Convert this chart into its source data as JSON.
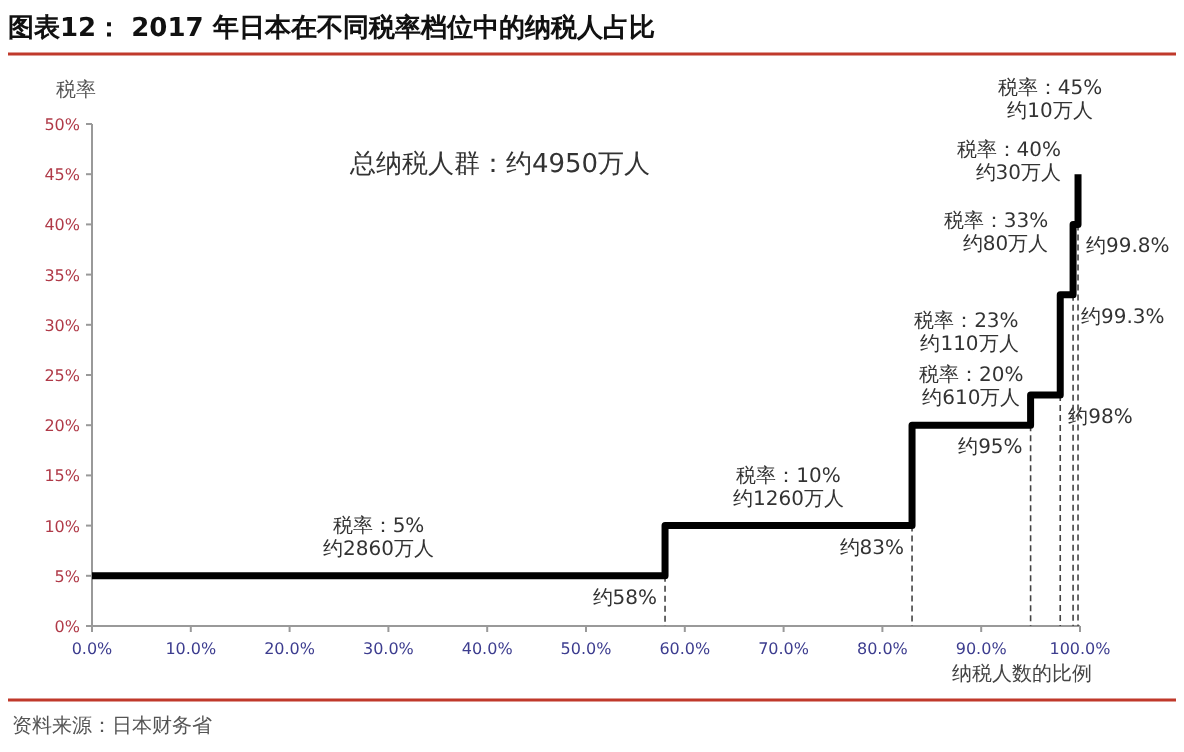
{
  "chart_data": {
    "type": "step",
    "title": "图表12：  2017 年日本在不同税率档位中的纳税人占比",
    "xlabel": "纳税人数的比例",
    "ylabel": "税率",
    "x": [
      0,
      58,
      83,
      95,
      98,
      99.3,
      99.8
    ],
    "series": [
      {
        "color": "#000000",
        "values": [
          5,
          10,
          20,
          23,
          33,
          40,
          45
        ]
      }
    ],
    "xlim": [
      0,
      100
    ],
    "xticks": [
      {
        "value": 0,
        "label": "0.0%"
      },
      {
        "value": 10,
        "label": "10.0%"
      },
      {
        "value": 20,
        "label": "20.0%"
      },
      {
        "value": 30,
        "label": "30.0%"
      },
      {
        "value": 40,
        "label": "40.0%"
      },
      {
        "value": 50,
        "label": "50.0%"
      },
      {
        "value": 60,
        "label": "60.0%"
      },
      {
        "value": 70,
        "label": "70.0%"
      },
      {
        "value": 80,
        "label": "80.0%"
      },
      {
        "value": 90,
        "label": "90.0%"
      },
      {
        "value": 100,
        "label": "100.0%"
      }
    ],
    "ylim": [
      0,
      50
    ],
    "yticks": [
      {
        "value": 0,
        "label": "0%"
      },
      {
        "value": 5,
        "label": "5%"
      },
      {
        "value": 10,
        "label": "10%"
      },
      {
        "value": 15,
        "label": "15%"
      },
      {
        "value": 20,
        "label": "20%"
      },
      {
        "value": 25,
        "label": "25%"
      },
      {
        "value": 30,
        "label": "30%"
      },
      {
        "value": 35,
        "label": "35%"
      },
      {
        "value": 40,
        "label": "40%"
      },
      {
        "value": 45,
        "label": "45%"
      },
      {
        "value": 50,
        "label": "50%"
      }
    ],
    "ref_lines": [
      {
        "axis": "x",
        "value": 58,
        "label": "约58%",
        "color": "#444444",
        "line_style": "dashed"
      },
      {
        "axis": "x",
        "value": 83,
        "label": "约83%",
        "color": "#444444",
        "line_style": "dashed"
      },
      {
        "axis": "x",
        "value": 95,
        "label": "约95%",
        "color": "#444444",
        "line_style": "dashed"
      },
      {
        "axis": "x",
        "value": 98,
        "label": "约98%",
        "color": "#444444",
        "line_style": "dashed"
      },
      {
        "axis": "x",
        "value": 99.3,
        "label": "约99.3%",
        "color": "#444444",
        "line_style": "dashed"
      },
      {
        "axis": "x",
        "value": 99.8,
        "label": "约99.8%",
        "color": "#444444",
        "line_style": "dashed"
      }
    ],
    "annotations": [
      "总纳税人群：约4950万人",
      {
        "text": "税率：5%\n约2860万人",
        "x": 29,
        "y": 5
      },
      {
        "text": "税率：10%\n约1260万人",
        "x": 70.5,
        "y": 10
      },
      {
        "text": "税率：20%\n约610万人",
        "x": 89,
        "y": 20
      },
      {
        "text": "税率：23%\n约110万人",
        "x": 96.5,
        "y": 23
      },
      {
        "text": "税率：33%\n约80万人",
        "x": 98.65,
        "y": 33
      },
      {
        "text": "税率：40%\n约30万人",
        "x": 99.55,
        "y": 40
      },
      {
        "text": "税率：45%\n约10万人",
        "x": 99.8,
        "y": 45
      },
      "资料来源：日本财务省"
    ],
    "line_style": "solid",
    "marker": "none",
    "grid": false
  }
}
